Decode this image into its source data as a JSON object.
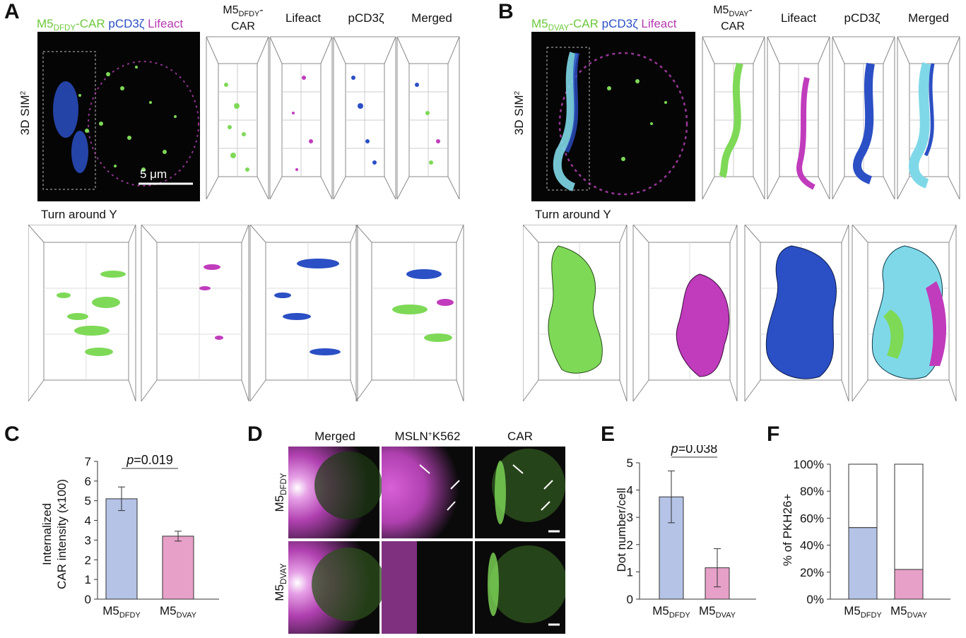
{
  "panel_a": {
    "letter": "A",
    "legend": {
      "car": "M5",
      "car_sub": "DFDY",
      "car_suffix": "-CAR",
      "pcd3z": "pCD3ζ",
      "lifeact": "Lifeact"
    },
    "row_label": "3D SIM",
    "row_label_sup": "2",
    "col1_line1": "M5",
    "col1_sub": "DFDY",
    "col1_dash": "-",
    "col1_line2": "CAR",
    "col2": "Lifeact",
    "col3": "pCD3ζ",
    "col4": "Merged",
    "scale_bar": "5 μm",
    "rotate_label": "Turn around Y"
  },
  "panel_b": {
    "letter": "B",
    "legend": {
      "car": "M5",
      "car_sub": "DVAY",
      "car_suffix": "-CAR",
      "pcd3z": "pCD3ζ",
      "lifeact": "Lifeact"
    },
    "row_label": "3D SIM",
    "row_label_sup": "2",
    "col1_line1": "M5",
    "col1_sub": "DVAY",
    "col1_dash": "-",
    "col1_line2": "CAR",
    "col2": "Lifeact",
    "col3": "pCD3ζ",
    "col4": "Merged",
    "rotate_label": "Turn around Y"
  },
  "panel_d": {
    "letter": "D",
    "col1": "Merged",
    "col2_pre": "MSLN",
    "col2_sup": "+",
    "col2_post": "K562",
    "col3": "CAR",
    "row1": "M5",
    "row1_sub": "DFDY",
    "row2": "M5",
    "row2_sub": "DVAY"
  },
  "colors": {
    "blue_bar": "#b4c3e6",
    "pink_bar": "#e7a0c8",
    "car_green": "#7ed957",
    "pcd3z_blue": "#2b4fc4",
    "lifeact_magenta": "#c03cbc"
  },
  "chart_data": [
    {
      "panel": "C",
      "type": "bar",
      "categories": [
        "M5DFDY",
        "M5DVAY"
      ],
      "cat_main": [
        "M5",
        "M5"
      ],
      "cat_sub": [
        "DFDY",
        "DVAY"
      ],
      "values": [
        5.1,
        3.2
      ],
      "errors": [
        0.6,
        0.25
      ],
      "ylabel_line1": "Internalized",
      "ylabel_line2": "CAR intensity (x100)",
      "ylim": [
        0,
        7
      ],
      "yticks": [
        "0",
        "1",
        "2",
        "3",
        "4",
        "5",
        "6",
        "7"
      ],
      "p_prefix": "p",
      "p_value": "=0.019"
    },
    {
      "panel": "E",
      "type": "bar",
      "categories": [
        "M5DFDY",
        "M5DVAY"
      ],
      "cat_main": [
        "M5",
        "M5"
      ],
      "cat_sub": [
        "DFDY",
        "DVAY"
      ],
      "values": [
        3.75,
        1.15
      ],
      "errors": [
        0.95,
        0.7
      ],
      "ylabel": "Dot number/cell",
      "ylim": [
        0,
        5
      ],
      "yticks": [
        "0",
        "1",
        "2",
        "3",
        "4",
        "5"
      ],
      "p_prefix": "p",
      "p_value": "=0.038"
    },
    {
      "panel": "F",
      "type": "bar",
      "categories": [
        "M5DFDY",
        "M5DVAY"
      ],
      "cat_main": [
        "M5",
        "M5"
      ],
      "cat_sub": [
        "DFDY",
        "DVAY"
      ],
      "values": [
        53,
        22
      ],
      "stacked_total": 100,
      "ylabel": "% of PKH26+",
      "ylim": [
        0,
        100
      ],
      "yticks": [
        "0%",
        "20%",
        "40%",
        "60%",
        "80%",
        "100%"
      ]
    }
  ]
}
